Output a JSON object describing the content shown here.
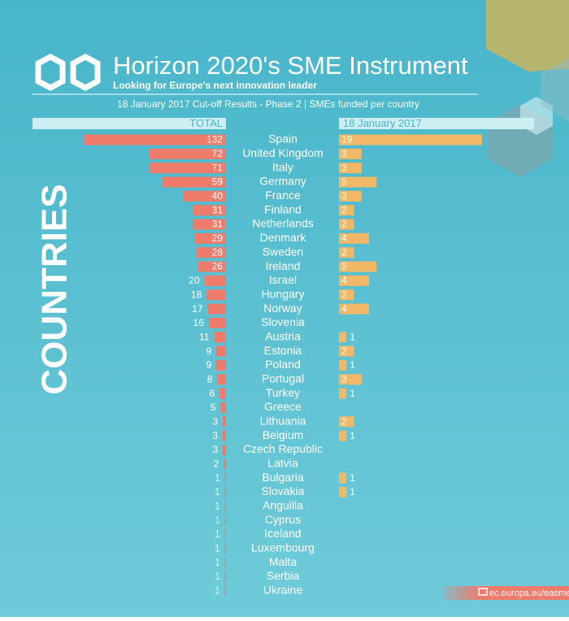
{
  "chart_data": {
    "type": "butterfly",
    "title": "Horizon 2020's SME Instrument",
    "subtitle": "Looking for Europe's next innovation leader",
    "caption": "18 January 2017 Cut-off Results - Phase 2  | SMEs funded per country",
    "axis_label": "COUNTRIES",
    "source": "ec.europa.eu/easme/",
    "categories": [
      "Spain",
      "United Kingdom",
      "Italy",
      "Germany",
      "France",
      "Finland",
      "Netherlands",
      "Denmark",
      "Sweden",
      "Ireland",
      "Israel",
      "Hungary",
      "Norway",
      "Slovenia",
      "Austria",
      "Estonia",
      "Poland",
      "Portugal",
      "Turkey",
      "Greece",
      "Lithuania",
      "Belgium",
      "Czech Republic",
      "Latvia",
      "Bulgaria",
      "Slovakia",
      "Anguilla",
      "Cyprus",
      "Iceland",
      "Luxembourg",
      "Malta",
      "Serbia",
      "Ukraine"
    ],
    "series": [
      {
        "name": "TOTAL",
        "color": "#ef7b6b",
        "values": [
          132,
          72,
          71,
          59,
          40,
          31,
          31,
          29,
          28,
          26,
          20,
          18,
          17,
          16,
          11,
          9,
          9,
          8,
          6,
          5,
          3,
          3,
          3,
          2,
          1,
          1,
          1,
          1,
          1,
          1,
          1,
          1,
          1
        ]
      },
      {
        "name": "18 January 2017",
        "color": "#f0b867",
        "values": [
          19,
          3,
          3,
          5,
          3,
          2,
          2,
          4,
          2,
          5,
          4,
          2,
          4,
          null,
          1,
          2,
          1,
          3,
          1,
          null,
          2,
          1,
          null,
          null,
          1,
          1,
          null,
          null,
          null,
          null,
          null,
          null,
          null
        ]
      }
    ]
  }
}
